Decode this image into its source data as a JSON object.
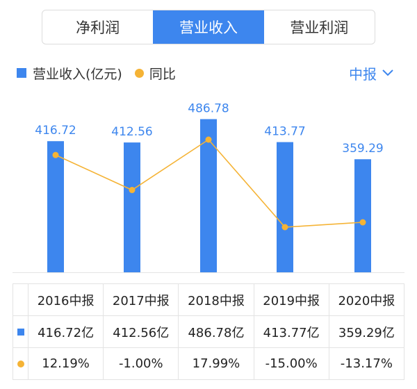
{
  "tabs": [
    {
      "label": "净利润",
      "active": false
    },
    {
      "label": "营业收入",
      "active": true
    },
    {
      "label": "营业利润",
      "active": false
    }
  ],
  "legend": {
    "bar_label": "营业收入(亿元)",
    "line_label": "同比"
  },
  "period_selector": {
    "label": "中报",
    "icon": "chevron-down-icon"
  },
  "colors": {
    "bar": "#3d86ee",
    "line": "#f5b335",
    "positive": "#e24a4a",
    "negative": "#27a85a"
  },
  "chart_data": {
    "type": "bar",
    "categories": [
      "2016中报",
      "2017中报",
      "2018中报",
      "2019中报",
      "2020中报"
    ],
    "series": [
      {
        "name": "营业收入(亿元)",
        "type": "bar",
        "values": [
          416.72,
          412.56,
          486.78,
          413.77,
          359.29
        ],
        "data_labels": [
          "416.72",
          "412.56",
          "486.78",
          "413.77",
          "359.29"
        ]
      },
      {
        "name": "同比",
        "type": "line",
        "values": [
          12.19,
          -1.0,
          17.99,
          -15.0,
          -13.17
        ]
      }
    ],
    "ylim": [
      0,
      500
    ],
    "grid": false
  },
  "table": {
    "columns": [
      "2016中报",
      "2017中报",
      "2018中报",
      "2019中报",
      "2020中报"
    ],
    "revenue_row": [
      "416.72亿",
      "412.56亿",
      "486.78亿",
      "413.77亿",
      "359.29亿"
    ],
    "yoy_row": [
      "12.19%",
      "-1.00%",
      "17.99%",
      "-15.00%",
      "-13.17%"
    ]
  }
}
